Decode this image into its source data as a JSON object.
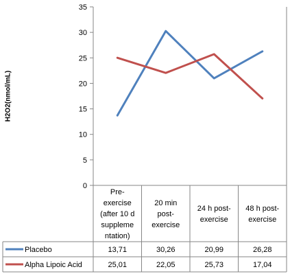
{
  "chart_data": {
    "type": "line",
    "title": "",
    "ylabel": "H2O2(nmol/mL)",
    "xlabel": "",
    "ylim": [
      0,
      35
    ],
    "yticks": [
      0,
      5,
      10,
      15,
      20,
      25,
      30,
      35
    ],
    "grid": false,
    "legend": "data-table",
    "categories": [
      [
        "Pre-",
        "exercise",
        "(after 10 d",
        "suppleme",
        "ntation)"
      ],
      [
        "20 min",
        "post-",
        "exercise"
      ],
      [
        "24 h post-",
        "exercise"
      ],
      [
        "48 h post-",
        "exercise"
      ]
    ],
    "series": [
      {
        "name": "Placebo",
        "color": "#4f81bd",
        "values": [
          13.71,
          30.26,
          20.99,
          26.28
        ],
        "labels": [
          "13,71",
          "30,26",
          "20,99",
          "26,28"
        ]
      },
      {
        "name": "Alpha Lipoic Acid",
        "color": "#c0504d",
        "values": [
          25.01,
          22.05,
          25.73,
          17.04
        ],
        "labels": [
          "25,01",
          "22,05",
          "25,73",
          "17,04"
        ]
      }
    ]
  }
}
